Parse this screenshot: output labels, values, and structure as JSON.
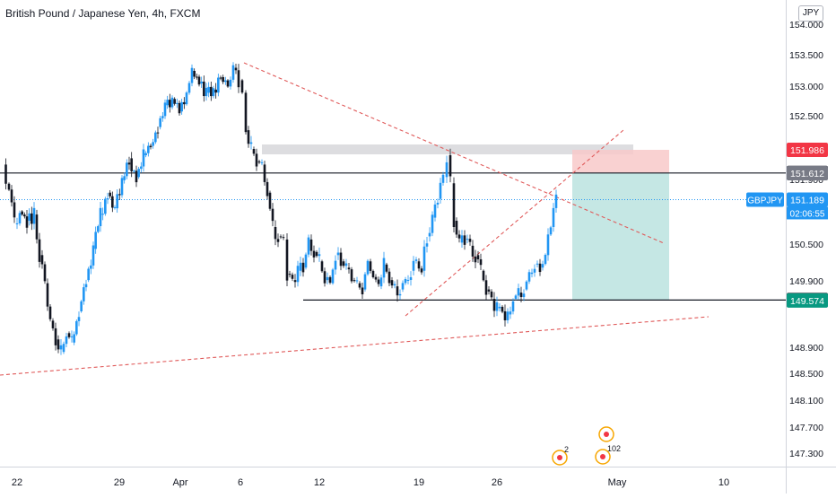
{
  "title": "British Pound / Japanese Yen, 4h, FXCM",
  "currency": "JPY",
  "symbol": "GBPJPY",
  "countdown": "02:06:55",
  "chart_data": {
    "type": "candlestick",
    "y_ticks": [
      "154.000",
      "153.500",
      "153.000",
      "152.500",
      "151.900",
      "150.500",
      "149.900",
      "148.900",
      "148.500",
      "148.100",
      "147.700",
      "147.300"
    ],
    "x_ticks": [
      "22",
      "29",
      "Apr",
      "6",
      "12",
      "19",
      "26",
      "May",
      "10"
    ],
    "price_labels": [
      {
        "value": "151.986",
        "color": "#f23645",
        "text_color": "#ffffff"
      },
      {
        "value": "151.615",
        "color": "#131722",
        "text_color": "#ffffff"
      },
      {
        "value": "151.612",
        "color": "#787b86",
        "text_color": "#ffffff"
      },
      {
        "value": "151.189",
        "color": "#2196f3",
        "text_color": "#ffffff"
      },
      {
        "value": "149.581",
        "color": "#131722",
        "text_color": "#ffffff"
      },
      {
        "value": "149.574",
        "color": "#089981",
        "text_color": "#ffffff"
      }
    ],
    "events": [
      {
        "label": "2"
      },
      {
        "label": "102"
      }
    ],
    "colors": {
      "up": "#2196f3",
      "down": "#131722",
      "trendline": "#e05a5a",
      "target_zone": "#b2dfdb",
      "stop_zone": "#f8c9c9",
      "resistance_zone": "#dddde0",
      "last_price": "#2196f3"
    }
  }
}
